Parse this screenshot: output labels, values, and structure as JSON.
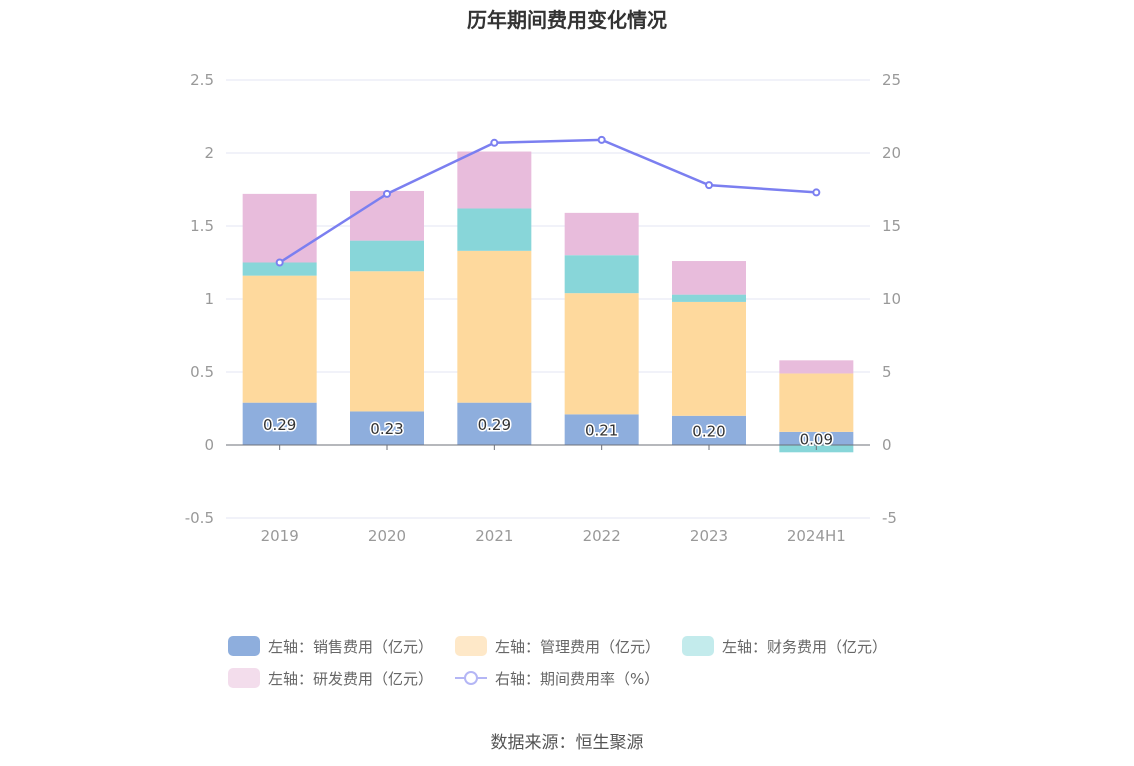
{
  "chart_data": {
    "type": "bar",
    "title": "历年期间费用变化情况",
    "categories": [
      "2019",
      "2020",
      "2021",
      "2022",
      "2023",
      "2024H1"
    ],
    "left_axis": {
      "min": -0.5,
      "max": 2.5,
      "ticks": [
        -0.5,
        0,
        0.5,
        1,
        1.5,
        2,
        2.5
      ],
      "tick_labels": [
        "-0.5",
        "0",
        "0.5",
        "1",
        "1.5",
        "2",
        "2.5"
      ]
    },
    "right_axis": {
      "min": -5,
      "max": 25,
      "ticks": [
        -5,
        0,
        5,
        10,
        15,
        20,
        25
      ],
      "tick_labels": [
        "-5",
        "0",
        "5",
        "10",
        "15",
        "20",
        "25"
      ]
    },
    "stacked": true,
    "grid": true,
    "series": [
      {
        "name": "左轴：销售费用（亿元）",
        "axis": "left",
        "kind": "bar",
        "color": "#8eaedd",
        "values": [
          0.29,
          0.23,
          0.29,
          0.21,
          0.2,
          0.09
        ],
        "labels": [
          "0.29",
          "0.23",
          "0.29",
          "0.21",
          "0.20",
          "0.09"
        ]
      },
      {
        "name": "左轴：管理费用（亿元）",
        "axis": "left",
        "kind": "bar",
        "color": "#fed99d",
        "values": [
          0.87,
          0.96,
          1.04,
          0.83,
          0.78,
          0.4
        ]
      },
      {
        "name": "左轴：财务费用（亿元）",
        "axis": "left",
        "kind": "bar",
        "color": "#88d6d9",
        "values": [
          0.09,
          0.21,
          0.29,
          0.26,
          0.05,
          -0.05
        ]
      },
      {
        "name": "左轴：研发费用（亿元）",
        "axis": "left",
        "kind": "bar",
        "color": "#e8bcdc",
        "values": [
          0.47,
          0.34,
          0.39,
          0.29,
          0.23,
          0.09
        ]
      },
      {
        "name": "右轴：期间费用率（%）",
        "axis": "right",
        "kind": "line",
        "color": "#7b7ff0",
        "values": [
          12.5,
          17.2,
          20.7,
          20.9,
          17.8,
          17.3
        ]
      }
    ],
    "legend_position": "bottom"
  },
  "source_text": "数据来源：恒生聚源"
}
